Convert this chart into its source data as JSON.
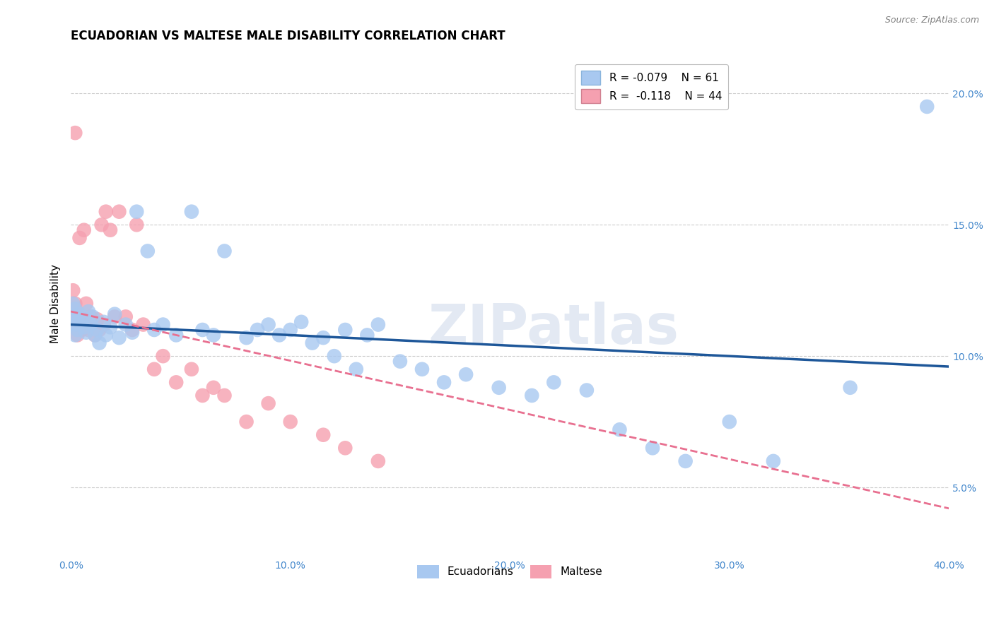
{
  "title": "ECUADORIAN VS MALTESE MALE DISABILITY CORRELATION CHART",
  "source": "Source: ZipAtlas.com",
  "ylabel": "Male Disability",
  "xlim": [
    0.0,
    0.4
  ],
  "ylim": [
    0.025,
    0.215
  ],
  "yticks": [
    0.05,
    0.1,
    0.15,
    0.2
  ],
  "ytick_labels": [
    "5.0%",
    "10.0%",
    "15.0%",
    "20.0%"
  ],
  "xticks": [
    0.0,
    0.1,
    0.2,
    0.3,
    0.4
  ],
  "xtick_labels": [
    "0.0%",
    "10.0%",
    "20.0%",
    "30.0%",
    "40.0%"
  ],
  "ecuadorian_R": -0.079,
  "ecuadorian_N": 61,
  "maltese_R": -0.118,
  "maltese_N": 44,
  "ecuadorian_color": "#a8c8f0",
  "maltese_color": "#f5a0b0",
  "ecuadorian_line_color": "#1e5799",
  "maltese_line_color": "#e87090",
  "watermark": "ZIPatlas",
  "background_color": "#ffffff",
  "grid_color": "#cccccc",
  "title_fontsize": 12,
  "axis_label_fontsize": 11,
  "tick_fontsize": 10,
  "tick_color": "#4488cc",
  "ecuadorian_x": [
    0.001,
    0.001,
    0.002,
    0.002,
    0.002,
    0.003,
    0.003,
    0.004,
    0.005,
    0.006,
    0.007,
    0.008,
    0.009,
    0.01,
    0.011,
    0.012,
    0.013,
    0.015,
    0.016,
    0.018,
    0.02,
    0.022,
    0.025,
    0.028,
    0.03,
    0.035,
    0.038,
    0.042,
    0.048,
    0.055,
    0.06,
    0.065,
    0.07,
    0.08,
    0.085,
    0.09,
    0.095,
    0.1,
    0.105,
    0.11,
    0.115,
    0.12,
    0.125,
    0.13,
    0.135,
    0.14,
    0.15,
    0.16,
    0.17,
    0.18,
    0.195,
    0.21,
    0.22,
    0.235,
    0.25,
    0.265,
    0.28,
    0.3,
    0.32,
    0.355,
    0.39
  ],
  "ecuadorian_y": [
    0.115,
    0.12,
    0.112,
    0.118,
    0.108,
    0.11,
    0.114,
    0.116,
    0.113,
    0.111,
    0.109,
    0.117,
    0.112,
    0.115,
    0.108,
    0.11,
    0.105,
    0.113,
    0.108,
    0.111,
    0.116,
    0.107,
    0.112,
    0.109,
    0.155,
    0.14,
    0.11,
    0.112,
    0.108,
    0.155,
    0.11,
    0.108,
    0.14,
    0.107,
    0.11,
    0.112,
    0.108,
    0.11,
    0.113,
    0.105,
    0.107,
    0.1,
    0.11,
    0.095,
    0.108,
    0.112,
    0.098,
    0.095,
    0.09,
    0.093,
    0.088,
    0.085,
    0.09,
    0.087,
    0.072,
    0.065,
    0.06,
    0.075,
    0.06,
    0.088,
    0.195
  ],
  "maltese_x": [
    0.001,
    0.001,
    0.002,
    0.002,
    0.002,
    0.003,
    0.003,
    0.004,
    0.004,
    0.005,
    0.006,
    0.006,
    0.007,
    0.007,
    0.008,
    0.009,
    0.01,
    0.011,
    0.012,
    0.013,
    0.014,
    0.015,
    0.016,
    0.018,
    0.02,
    0.022,
    0.025,
    0.028,
    0.03,
    0.033,
    0.038,
    0.042,
    0.048,
    0.055,
    0.06,
    0.065,
    0.07,
    0.08,
    0.09,
    0.1,
    0.115,
    0.125,
    0.14,
    0.002
  ],
  "maltese_y": [
    0.115,
    0.125,
    0.118,
    0.12,
    0.185,
    0.112,
    0.108,
    0.115,
    0.145,
    0.11,
    0.113,
    0.148,
    0.112,
    0.12,
    0.11,
    0.115,
    0.112,
    0.108,
    0.114,
    0.11,
    0.15,
    0.112,
    0.155,
    0.148,
    0.115,
    0.155,
    0.115,
    0.11,
    0.15,
    0.112,
    0.095,
    0.1,
    0.09,
    0.095,
    0.085,
    0.088,
    0.085,
    0.075,
    0.082,
    0.075,
    0.07,
    0.065,
    0.06,
    0.112
  ],
  "ecu_line_x": [
    0.0,
    0.4
  ],
  "ecu_line_y": [
    0.112,
    0.096
  ],
  "mal_line_x": [
    0.0,
    0.4
  ],
  "mal_line_y": [
    0.117,
    0.042
  ]
}
